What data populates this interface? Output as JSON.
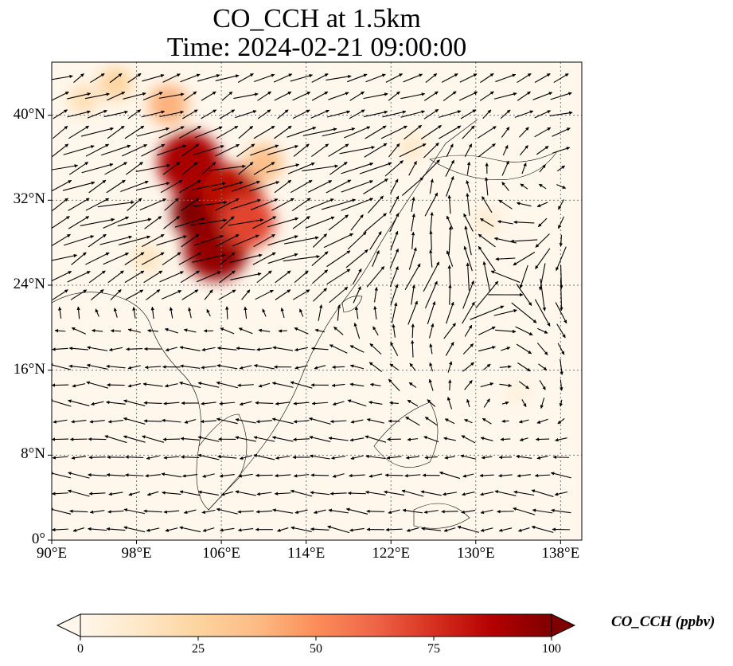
{
  "title": {
    "line1": "CO_CCH at 1.5km",
    "line2": "Time: 2024-02-21 09:00:00"
  },
  "map": {
    "lon_range": [
      90,
      140
    ],
    "lat_range": [
      0,
      45
    ],
    "lat_ticks": [
      {
        "value": 0,
        "label": "0°"
      },
      {
        "value": 8,
        "label": "8°N"
      },
      {
        "value": 16,
        "label": "16°N"
      },
      {
        "value": 24,
        "label": "24°N"
      },
      {
        "value": 32,
        "label": "32°N"
      },
      {
        "value": 40,
        "label": "40°N"
      }
    ],
    "lon_ticks": [
      {
        "value": 90,
        "label": "90°E"
      },
      {
        "value": 98,
        "label": "98°E"
      },
      {
        "value": 106,
        "label": "106°E"
      },
      {
        "value": 114,
        "label": "114°E"
      },
      {
        "value": 122,
        "label": "122°E"
      },
      {
        "value": 130,
        "label": "130°E"
      },
      {
        "value": 138,
        "label": "138°E"
      }
    ],
    "gridlines": "dotted",
    "wind_vectors": true
  },
  "colorbar": {
    "label": "CO_CCH (ppbv)",
    "ticks": [
      "0",
      "25",
      "50",
      "75",
      "100"
    ],
    "range": [
      0,
      100
    ],
    "extend": "both",
    "colormap": "OrRd",
    "colors": [
      "#fff7ec",
      "#fee8c8",
      "#fdd49e",
      "#fdbb84",
      "#fc8d59",
      "#ef6548",
      "#d7301f",
      "#b30000",
      "#7f0000"
    ]
  },
  "plumes": [
    {
      "lon": 104.5,
      "lat": 31.0,
      "value": 100
    },
    {
      "lon": 103.0,
      "lat": 35.5,
      "value": 90
    },
    {
      "lon": 107.0,
      "lat": 32.5,
      "value": 85
    },
    {
      "lon": 105.5,
      "lat": 27.5,
      "value": 95
    },
    {
      "lon": 108.5,
      "lat": 30.0,
      "value": 70
    },
    {
      "lon": 101.0,
      "lat": 41.0,
      "value": 40
    },
    {
      "lon": 96.0,
      "lat": 43.0,
      "value": 25
    },
    {
      "lon": 110.0,
      "lat": 35.5,
      "value": 35
    },
    {
      "lon": 93.0,
      "lat": 41.5,
      "value": 18
    },
    {
      "lon": 124.0,
      "lat": 37.0,
      "value": 12
    },
    {
      "lon": 99.0,
      "lat": 26.5,
      "value": 15
    },
    {
      "lon": 131.0,
      "lat": 30.0,
      "value": 10
    },
    {
      "lon": 134.0,
      "lat": 14.0,
      "value": 6
    }
  ]
}
